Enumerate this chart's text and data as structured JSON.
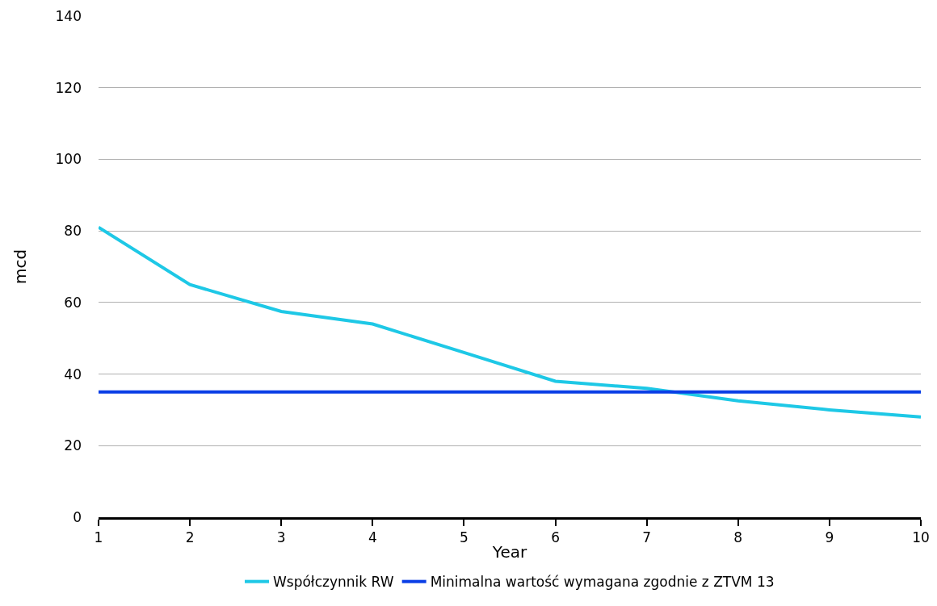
{
  "chart_data": {
    "type": "line",
    "xlabel": "Year",
    "ylabel": "mcd",
    "x": [
      1,
      2,
      3,
      4,
      5,
      6,
      7,
      8,
      9,
      10
    ],
    "series": [
      {
        "name": "Współczynnik RW",
        "color": "#1ec8e6",
        "values": [
          81,
          65,
          57.5,
          54,
          46,
          38,
          36,
          32.5,
          30,
          28
        ]
      },
      {
        "name": "Minimalna wartość wymagana zgodnie z ZTVM 13",
        "color": "#0a3ee6",
        "values": [
          35,
          35,
          35,
          35,
          35,
          35,
          35,
          35,
          35,
          35
        ]
      }
    ],
    "xlim": [
      1,
      10
    ],
    "xticks": [
      1,
      2,
      3,
      4,
      5,
      6,
      7,
      8,
      9,
      10
    ],
    "ylim": [
      0,
      140
    ],
    "yticks": [
      0,
      20,
      40,
      60,
      80,
      100,
      120,
      140
    ],
    "grid": "y",
    "legend": "bottom",
    "marker": "none",
    "line_style": "solid"
  }
}
